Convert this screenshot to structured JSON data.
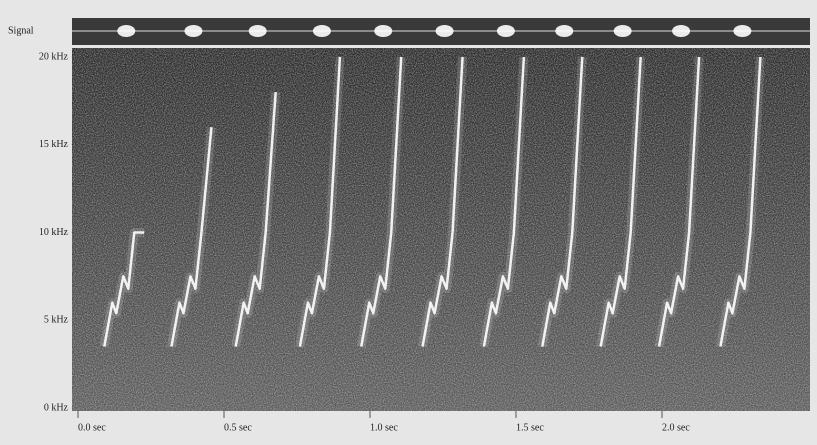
{
  "chart_data": {
    "type": "spectrogram",
    "signal_label": "Signal",
    "x": [
      0.09,
      0.32,
      0.54,
      0.76,
      0.97,
      1.18,
      1.39,
      1.59,
      1.79,
      1.99,
      2.2
    ],
    "values": [
      10,
      16,
      18,
      20,
      20,
      20,
      20,
      20,
      20,
      20,
      20
    ],
    "xlim": [
      0,
      2.5
    ],
    "ylim": [
      0,
      20
    ],
    "xticks": [
      {
        "value": 0,
        "label": "0.0 sec"
      },
      {
        "value": 0.5,
        "label": "0.5 sec"
      },
      {
        "value": 1,
        "label": "1.0 sec"
      },
      {
        "value": 1.5,
        "label": "1.5 sec"
      },
      {
        "value": 2,
        "label": "2.0 sec"
      }
    ],
    "yticks": [
      {
        "value": 0,
        "label": "0 kHz"
      },
      {
        "value": 5,
        "label": "5 kHz"
      },
      {
        "value": 10,
        "label": "10 kHz"
      },
      {
        "value": 15,
        "label": "15 kHz"
      },
      {
        "value": 20,
        "label": "20 kHz"
      }
    ]
  }
}
